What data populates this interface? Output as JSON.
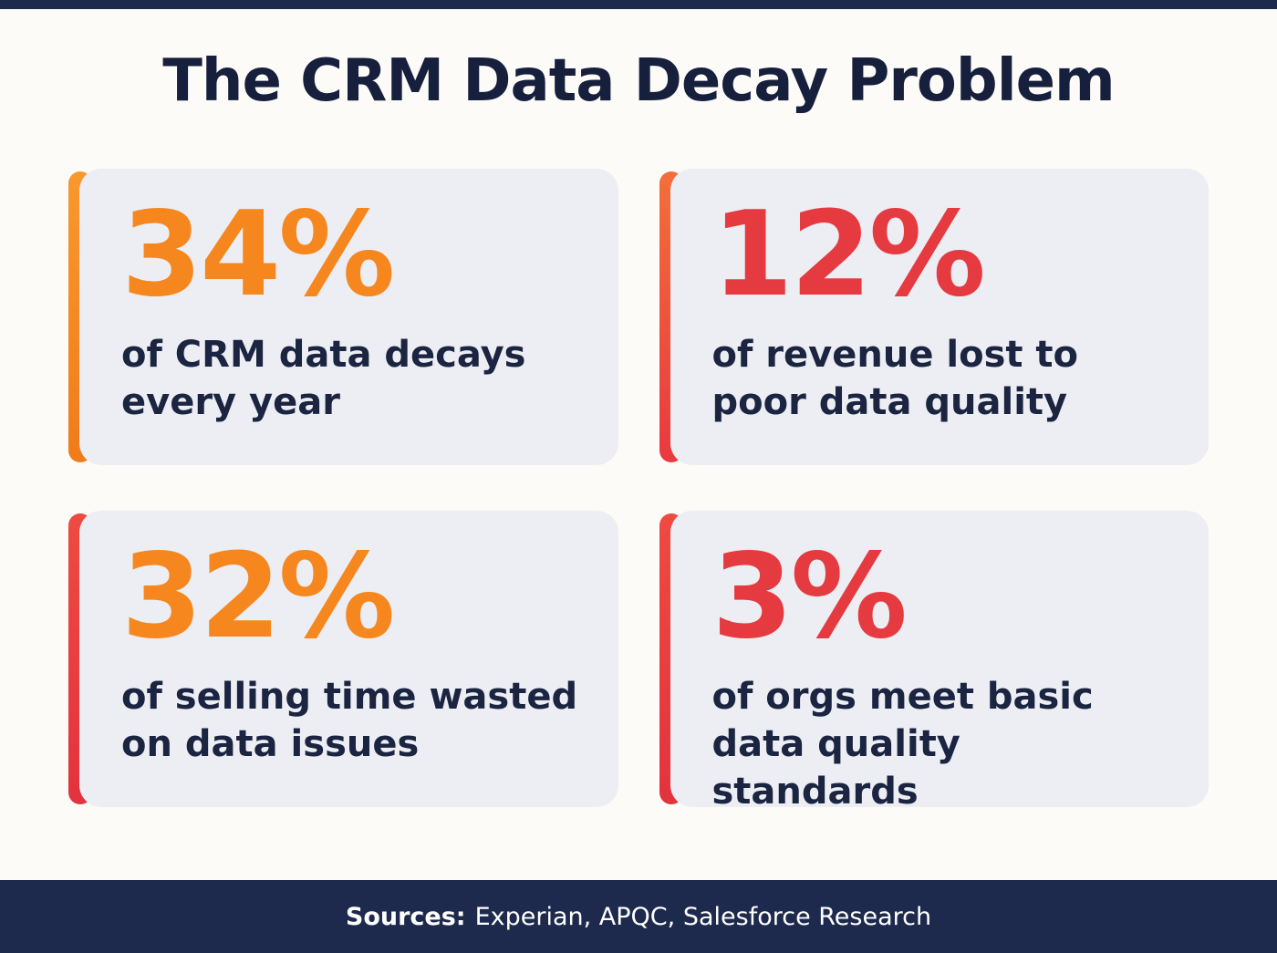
{
  "title": "The CRM Data Decay Problem",
  "cards": [
    {
      "value": "34%",
      "label": "of CRM data decays\nevery year",
      "value_color": "#F6871F",
      "accent_color": "#F6871F"
    },
    {
      "value": "12%",
      "label": "of revenue lost to\npoor data quality",
      "value_color": "#E53A40",
      "accent_color": "#EF4A33"
    },
    {
      "value": "32%",
      "label": "of selling time wasted\non data issues",
      "value_color": "#F6871F",
      "accent_color": "#E8393F"
    },
    {
      "value": "3%",
      "label": "of orgs meet basic\ndata quality standards",
      "value_color": "#E53A40",
      "accent_color": "#E8393F"
    }
  ],
  "footer": {
    "label": "Sources:",
    "text": "Experian, APQC, Salesforce Research"
  },
  "colors": {
    "background": "#FCFBF8",
    "card_background": "#ECEEF3",
    "navy": "#1D2A4D",
    "text_dark": "#161F3C",
    "orange": "#F6871F",
    "red": "#E53A40"
  },
  "chart_data": {
    "type": "table",
    "title": "The CRM Data Decay Problem",
    "categories": [
      "CRM data decays every year",
      "revenue lost to poor data quality",
      "selling time wasted on data issues",
      "orgs meet basic data quality standards"
    ],
    "values": [
      34,
      12,
      32,
      3
    ],
    "unit": "%",
    "sources": [
      "Experian",
      "APQC",
      "Salesforce Research"
    ]
  }
}
